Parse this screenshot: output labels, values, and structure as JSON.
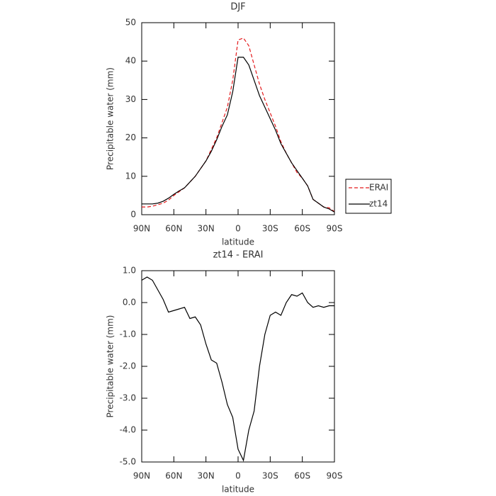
{
  "chart_data": [
    {
      "type": "line",
      "title": "DJF",
      "xlabel": "latitude",
      "ylabel": "Precipitable water (mm)",
      "x": [
        90,
        85,
        80,
        75,
        70,
        65,
        60,
        55,
        50,
        45,
        40,
        35,
        30,
        25,
        20,
        15,
        10,
        5,
        0,
        -5,
        -10,
        -15,
        -20,
        -25,
        -30,
        -35,
        -40,
        -45,
        -50,
        -55,
        -60,
        -65,
        -70,
        -75,
        -80,
        -85,
        -90
      ],
      "xlim": [
        90,
        -90
      ],
      "xticks": [
        {
          "value": 90,
          "label": "90N"
        },
        {
          "value": 60,
          "label": "60N"
        },
        {
          "value": 30,
          "label": "30N"
        },
        0,
        {
          "value": -30,
          "label": "30S"
        },
        {
          "value": -60,
          "label": "60S"
        },
        {
          "value": -90,
          "label": "90S"
        }
      ],
      "ylim": [
        0,
        50
      ],
      "yticks": [
        0,
        10,
        20,
        30,
        40,
        50
      ],
      "legend": "right",
      "series": [
        {
          "name": "ERAI",
          "color": "#e41a1c",
          "dashed": true,
          "values": [
            2,
            2,
            2.2,
            2.6,
            3,
            3.8,
            5,
            6,
            7,
            8.5,
            10,
            12,
            14,
            17,
            20,
            24,
            28,
            35,
            45.5,
            46,
            44,
            39,
            34,
            30,
            26.5,
            23,
            19,
            16,
            13.5,
            11,
            9.5,
            7.5,
            4,
            3,
            2,
            1.8,
            0.8
          ]
        },
        {
          "name": "zt14",
          "color": "#000000",
          "dashed": false,
          "values": [
            2.8,
            2.8,
            2.8,
            3,
            3.5,
            4.3,
            5.3,
            6.2,
            7,
            8.5,
            10,
            12,
            14,
            16.5,
            19.5,
            23,
            26,
            32,
            41,
            41,
            39,
            35,
            31,
            28,
            25,
            22,
            18.5,
            16,
            13.5,
            11.5,
            9.5,
            7.5,
            4,
            3,
            2,
            1.5,
            0.7
          ]
        }
      ]
    },
    {
      "type": "line",
      "title": "zt14 - ERAI",
      "xlabel": "latitude",
      "ylabel": "Precipitable water (mm)",
      "x": [
        90,
        85,
        80,
        75,
        70,
        65,
        60,
        55,
        50,
        45,
        40,
        35,
        30,
        25,
        20,
        15,
        10,
        5,
        0,
        -5,
        -10,
        -15,
        -20,
        -25,
        -30,
        -35,
        -40,
        -45,
        -50,
        -55,
        -60,
        -65,
        -70,
        -75,
        -80,
        -85,
        -90
      ],
      "xlim": [
        90,
        -90
      ],
      "xticks": [
        {
          "value": 90,
          "label": "90N"
        },
        {
          "value": 60,
          "label": "60N"
        },
        {
          "value": 30,
          "label": "30N"
        },
        0,
        {
          "value": -30,
          "label": "30S"
        },
        {
          "value": -60,
          "label": "60S"
        },
        {
          "value": -90,
          "label": "90S"
        }
      ],
      "ylim": [
        -5,
        1
      ],
      "yticks": [
        {
          "value": 1,
          "label": "1.0"
        },
        {
          "value": 0,
          "label": "0.0"
        },
        {
          "value": -1,
          "label": "-1.0"
        },
        {
          "value": -2,
          "label": "-2.0"
        },
        {
          "value": -3,
          "label": "-3.0"
        },
        {
          "value": -4,
          "label": "-4.0"
        },
        {
          "value": -5,
          "label": "-5.0"
        }
      ],
      "series": [
        {
          "color": "#000000",
          "dashed": false,
          "values": [
            0.7,
            0.8,
            0.7,
            0.4,
            0.1,
            -0.3,
            -0.25,
            -0.2,
            -0.15,
            -0.5,
            -0.45,
            -0.7,
            -1.3,
            -1.8,
            -1.9,
            -2.5,
            -3.2,
            -3.6,
            -4.6,
            -4.95,
            -4.0,
            -3.4,
            -2.0,
            -1.0,
            -0.4,
            -0.3,
            -0.4,
            0.0,
            0.25,
            0.2,
            0.3,
            0.0,
            -0.15,
            -0.1,
            -0.15,
            -0.1,
            -0.1
          ]
        }
      ]
    }
  ]
}
